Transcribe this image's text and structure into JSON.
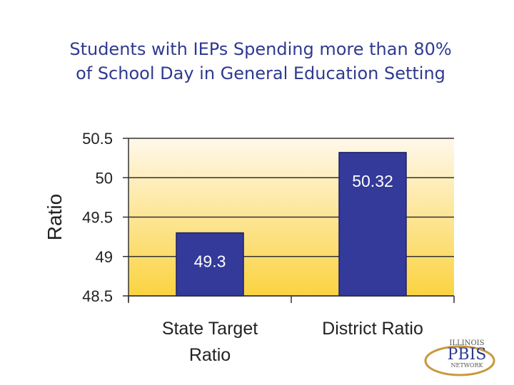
{
  "title_lines": [
    "Students with IEPs Spending more than 80%",
    "of School Day in General Education Setting"
  ],
  "chart_data": {
    "type": "bar",
    "title": "Students with IEPs Spending more than 80% of School Day in General Education Setting",
    "categories": [
      [
        "State Target",
        "Ratio"
      ],
      [
        "District Ratio"
      ]
    ],
    "values": [
      49.3,
      50.32
    ],
    "value_labels": [
      "49.3",
      "50.32"
    ],
    "xlabel": "",
    "ylabel": "Ratio",
    "ylim": [
      48.5,
      50.5
    ],
    "yticks": [
      50.5,
      50,
      49.5,
      49,
      48.5
    ],
    "grid": true,
    "bar_color": "#343a9a",
    "bar_border": "#1c1f66",
    "plot_gradient": [
      "#fff8ea",
      "#fbd341"
    ]
  },
  "logo": {
    "lines": [
      "ILLINOIS",
      "PBIS",
      "NETWORK"
    ],
    "ring_color": "#c89a3c",
    "text_color": "#2f3a8f"
  }
}
